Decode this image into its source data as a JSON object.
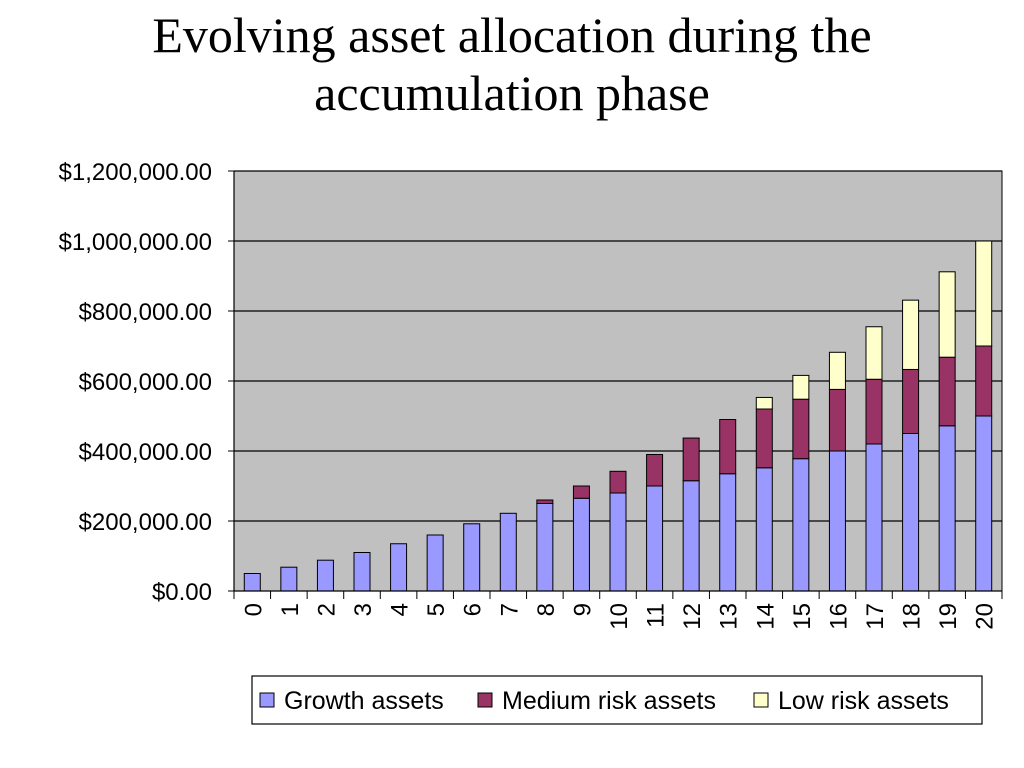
{
  "chart_data": {
    "type": "bar",
    "stacked": true,
    "title_lines": [
      "Evolving asset allocation during  the",
      "accumulation phase"
    ],
    "categories": [
      "0",
      "1",
      "2",
      "3",
      "4",
      "5",
      "6",
      "7",
      "8",
      "9",
      "10",
      "11",
      "12",
      "13",
      "14",
      "15",
      "16",
      "17",
      "18",
      "19",
      "20"
    ],
    "series": [
      {
        "name": "Growth assets",
        "color": "#9999ff",
        "values": [
          50000,
          68000,
          88000,
          110000,
          135000,
          160000,
          192000,
          222000,
          250000,
          265000,
          280000,
          300000,
          315000,
          335000,
          352000,
          378000,
          400000,
          420000,
          450000,
          472000,
          500000
        ]
      },
      {
        "name": "Medium risk assets",
        "color": "#993366",
        "values": [
          0,
          0,
          0,
          0,
          0,
          0,
          0,
          0,
          10000,
          35000,
          62000,
          90000,
          122000,
          155000,
          168000,
          170000,
          176000,
          185000,
          183000,
          196000,
          200000
        ]
      },
      {
        "name": "Low risk assets",
        "color": "#ffffcc",
        "values": [
          0,
          0,
          0,
          0,
          0,
          0,
          0,
          0,
          0,
          0,
          0,
          0,
          0,
          0,
          33000,
          68000,
          106000,
          150000,
          198000,
          244000,
          300000
        ]
      }
    ],
    "ylim": [
      0,
      1200000
    ],
    "yticks": [
      0,
      200000,
      400000,
      600000,
      800000,
      1000000,
      1200000
    ],
    "ytick_labels": [
      "$0.00",
      "$200,000.00",
      "$400,000.00",
      "$600,000.00",
      "$800,000.00",
      "$1,000,000.00",
      "$1,200,000.00"
    ],
    "grid": true,
    "legend_position": "bottom",
    "plot_background": "#c0c0c0"
  }
}
